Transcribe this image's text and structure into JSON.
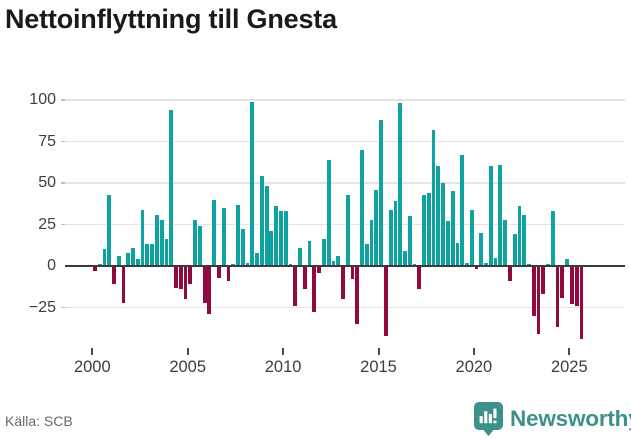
{
  "title": "Nettoinflyttning till Gnesta",
  "source": "Källa: SCB",
  "logo": {
    "text": "Newsworthy",
    "icon": "bar-chart-pin-icon"
  },
  "colors": {
    "positive_bar": "#0ea2a0",
    "negative_bar": "#91093f",
    "gridline": "#e4e4e4",
    "zero_axis": "#3b3b3b",
    "axis_text": "#3e3e3e",
    "brand_teal": "#3e918b"
  },
  "chart_data": {
    "type": "bar",
    "title": "Nettoinflyttning till Gnesta",
    "x_unit": "quarter",
    "start": "2000-Q1",
    "end": "2025-Q3",
    "grid": "horizontal",
    "legend": "none",
    "ylim": [
      -48,
      106
    ],
    "y_ticks": [
      100,
      75,
      50,
      25,
      0,
      -25
    ],
    "y_tick_labels": [
      "100",
      "75",
      "50",
      "25",
      "0",
      "−25"
    ],
    "x_tick_labels": [
      "2000",
      "2005",
      "2010",
      "2015",
      "2020",
      "2025"
    ],
    "series": [
      {
        "name": "Nettoinflyttning",
        "values": [
          -3,
          1,
          10,
          43,
          -11,
          6,
          -22,
          8,
          11,
          4,
          34,
          13,
          13,
          31,
          28,
          16,
          94,
          -13,
          -14,
          -20,
          -11,
          28,
          24,
          -22,
          -29,
          40,
          -7,
          35,
          -9,
          1,
          37,
          22,
          2,
          99,
          8,
          54,
          48,
          21,
          36,
          33,
          33,
          1,
          -24,
          11,
          -14,
          15,
          -28,
          -4,
          16,
          64,
          3,
          6,
          -20,
          43,
          -8,
          -35,
          70,
          13,
          28,
          46,
          88,
          -42,
          34,
          39,
          98,
          9,
          30,
          1,
          -14,
          43,
          44,
          82,
          60,
          50,
          27,
          45,
          14,
          67,
          2,
          34,
          -2,
          20,
          2,
          60,
          5,
          61,
          28,
          -9,
          19,
          36,
          31,
          1,
          -30,
          -41,
          -17,
          1,
          33,
          -37,
          -19,
          4,
          -23,
          -24,
          -44
        ]
      }
    ]
  }
}
